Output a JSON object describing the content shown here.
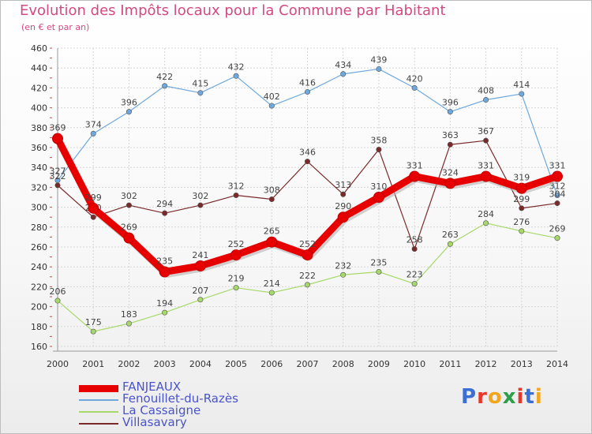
{
  "header": {
    "title": "Evolution des Impôts locaux pour la Commune par Habitant",
    "subtitle": "(en € et par an)"
  },
  "logo": {
    "letters": [
      "P",
      "r",
      "o",
      "x",
      "i",
      "t",
      "i"
    ],
    "colors": [
      "#3b6fd4",
      "#e8372a",
      "#f2a51d",
      "#2f9e48",
      "#e8372a",
      "#3b6fd4",
      "#f2a51d"
    ]
  },
  "chart_data": {
    "type": "line",
    "x": [
      2000,
      2001,
      2002,
      2003,
      2004,
      2005,
      2006,
      2007,
      2008,
      2009,
      2010,
      2011,
      2012,
      2013,
      2014
    ],
    "ylim": [
      160,
      460
    ],
    "yticks": [
      160,
      180,
      200,
      220,
      240,
      260,
      280,
      300,
      320,
      340,
      360,
      380,
      400,
      420,
      440,
      460
    ],
    "grid": true,
    "legend_position": "bottom-left",
    "series": [
      {
        "name": "FANJEAUX",
        "color": "#e60000",
        "values": [
          369,
          299,
          269,
          235,
          241,
          252,
          265,
          252,
          290,
          310,
          331,
          324,
          331,
          319,
          331
        ]
      },
      {
        "name": "Fenouillet-du-Razès",
        "color": "#6fa8dc",
        "values": [
          327,
          374,
          396,
          422,
          415,
          432,
          402,
          416,
          434,
          439,
          420,
          396,
          408,
          414,
          312
        ]
      },
      {
        "name": "La Cassaigne",
        "color": "#a6d96a",
        "values": [
          206,
          175,
          183,
          194,
          207,
          219,
          214,
          222,
          232,
          235,
          223,
          263,
          284,
          276,
          269
        ]
      },
      {
        "name": "Villasavary",
        "color": "#7a2a2a",
        "values": [
          322,
          290,
          302,
          294,
          302,
          312,
          308,
          346,
          313,
          358,
          258,
          363,
          367,
          299,
          304
        ]
      }
    ]
  }
}
